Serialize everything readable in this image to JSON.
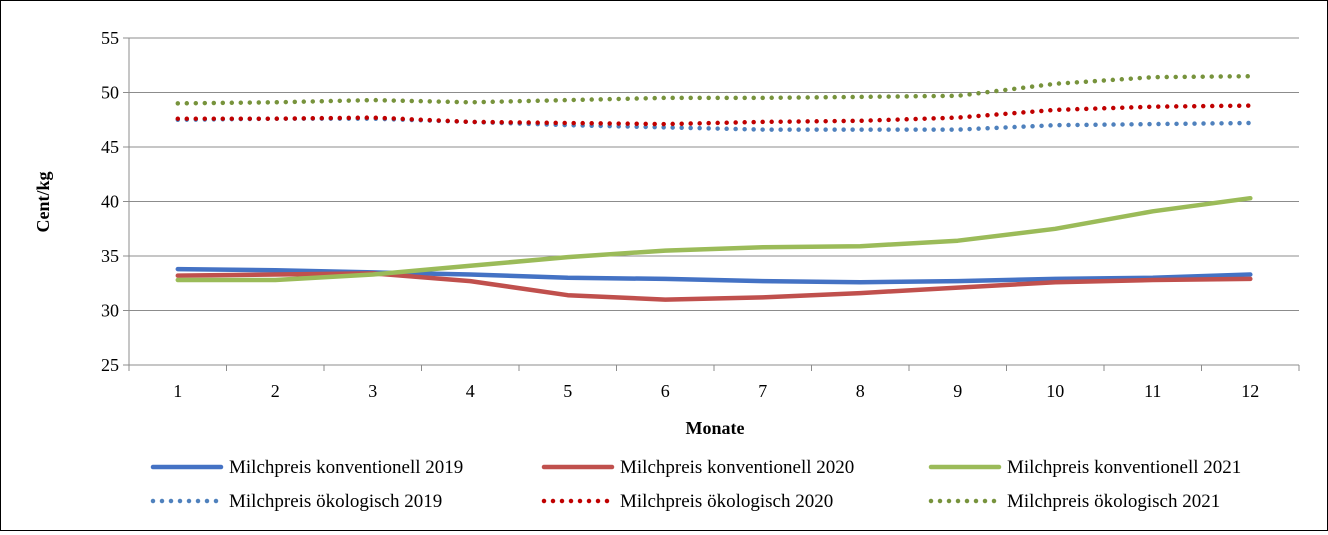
{
  "chart_data": {
    "type": "line",
    "title": "",
    "xlabel": "Monate",
    "ylabel": "Cent/kg",
    "x": [
      1,
      2,
      3,
      4,
      5,
      6,
      7,
      8,
      9,
      10,
      11,
      12
    ],
    "ylim": [
      25,
      55
    ],
    "yticks": [
      25,
      30,
      35,
      40,
      45,
      50,
      55
    ],
    "grid": "horizontal",
    "legend_position": "bottom",
    "series": [
      {
        "name": "Milchpreis konventionell 2019",
        "color": "#4472C4",
        "style": "solid",
        "values": [
          33.8,
          33.7,
          33.5,
          33.3,
          33.0,
          32.9,
          32.7,
          32.6,
          32.7,
          32.9,
          33.0,
          33.3
        ]
      },
      {
        "name": "Milchpreis konventionell 2020",
        "color": "#C0504D",
        "style": "solid",
        "values": [
          33.2,
          33.3,
          33.4,
          32.7,
          31.4,
          31.0,
          31.2,
          31.6,
          32.1,
          32.6,
          32.8,
          32.9
        ]
      },
      {
        "name": "Milchpreis konventionell 2021",
        "color": "#9BBB59",
        "style": "solid",
        "values": [
          32.8,
          32.8,
          33.3,
          34.1,
          34.9,
          35.5,
          35.8,
          35.9,
          36.4,
          37.5,
          39.1,
          40.3
        ]
      },
      {
        "name": "Milchpreis ökologisch 2019",
        "color": "#4F81BD",
        "style": "dotted",
        "values": [
          47.5,
          47.6,
          47.6,
          47.3,
          47.0,
          46.8,
          46.6,
          46.6,
          46.6,
          47.0,
          47.1,
          47.2
        ]
      },
      {
        "name": "Milchpreis ökologisch 2020",
        "color": "#C00000",
        "style": "dotted",
        "values": [
          47.6,
          47.6,
          47.7,
          47.3,
          47.2,
          47.1,
          47.3,
          47.4,
          47.7,
          48.4,
          48.7,
          48.8
        ]
      },
      {
        "name": "Milchpreis ökologisch 2021",
        "color": "#77933C",
        "style": "dotted",
        "values": [
          49.0,
          49.1,
          49.3,
          49.1,
          49.3,
          49.5,
          49.5,
          49.6,
          49.7,
          50.8,
          51.4,
          51.5
        ]
      }
    ]
  }
}
